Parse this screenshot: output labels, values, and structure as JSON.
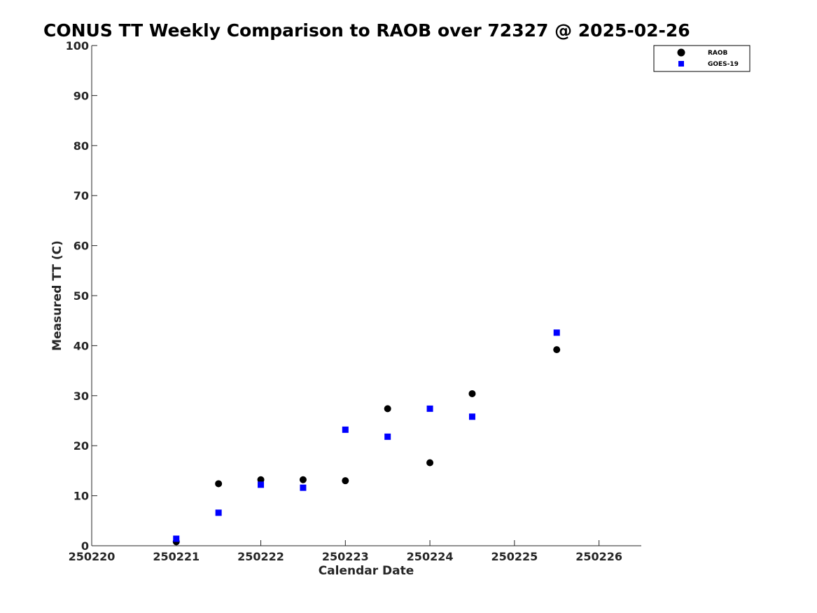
{
  "chart_data": {
    "type": "scatter",
    "title": "CONUS TT Weekly Comparison to RAOB over 72327 @ 2025-02-26",
    "xlabel": "Calendar Date",
    "ylabel": "Measured TT (C)",
    "xlim": [
      250220,
      250226.5
    ],
    "ylim": [
      0,
      100
    ],
    "x_ticks": [
      250220,
      250221,
      250222,
      250223,
      250224,
      250225,
      250226
    ],
    "x_tick_labels": [
      "250220",
      "250221",
      "250222",
      "250223",
      "250224",
      "250225",
      "250226"
    ],
    "y_ticks": [
      0,
      10,
      20,
      30,
      40,
      50,
      60,
      70,
      80,
      90,
      100
    ],
    "y_tick_labels": [
      "0",
      "10",
      "20",
      "30",
      "40",
      "50",
      "60",
      "70",
      "80",
      "90",
      "100"
    ],
    "grid": false,
    "legend_position": "top-right",
    "series": [
      {
        "name": "RAOB",
        "marker": "circle",
        "color": "#000000",
        "x": [
          250221,
          250221.5,
          250222,
          250222.5,
          250223,
          250223.5,
          250224,
          250224.5,
          250225.5
        ],
        "y": [
          0.8,
          12.4,
          13.2,
          13.2,
          13.0,
          27.4,
          16.6,
          30.4,
          39.2
        ]
      },
      {
        "name": "GOES-19",
        "marker": "square",
        "color": "#0000ff",
        "x": [
          250221,
          250221.5,
          250222,
          250222.5,
          250223,
          250223.5,
          250224,
          250224.5,
          250225.5
        ],
        "y": [
          1.4,
          6.6,
          12.2,
          11.6,
          23.2,
          21.8,
          27.4,
          25.8,
          42.6
        ]
      }
    ]
  }
}
